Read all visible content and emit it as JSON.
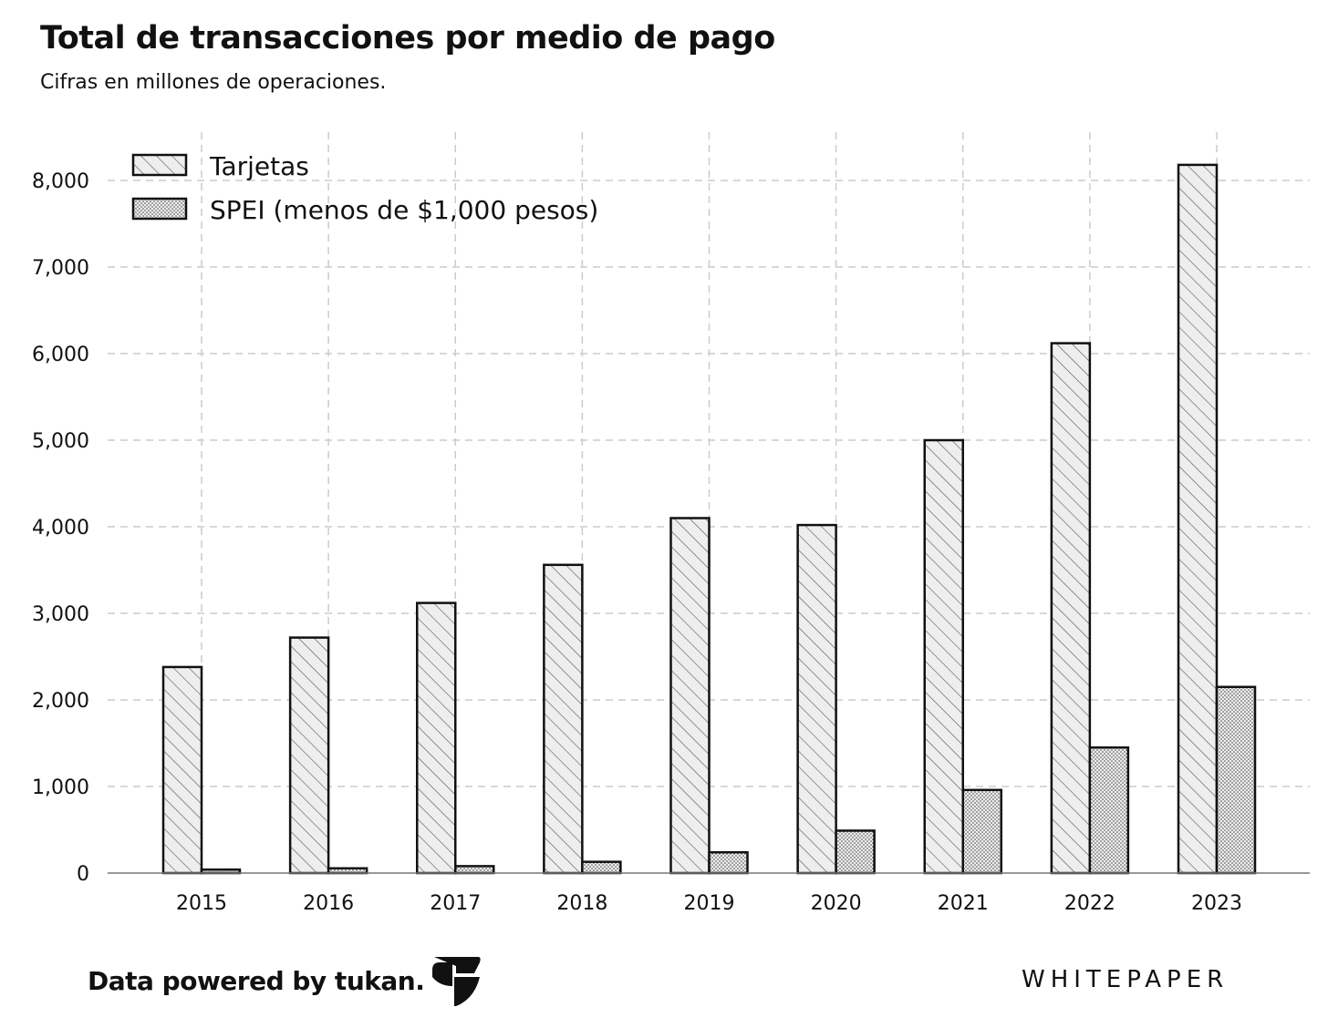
{
  "header": {
    "title": "Total de transacciones por medio de pago",
    "subtitle": "Cifras en millones de operaciones."
  },
  "footer": {
    "source": "Data powered by tukan.",
    "logo_icon": "tukan-logo-icon",
    "brand": "WHITEPAPER"
  },
  "chart_data": {
    "type": "bar",
    "categories": [
      "2015",
      "2016",
      "2017",
      "2018",
      "2019",
      "2020",
      "2021",
      "2022",
      "2023"
    ],
    "series": [
      {
        "name": "Tarjetas",
        "pattern": "hatch",
        "values": [
          2380,
          2720,
          3120,
          3560,
          4100,
          4020,
          5000,
          6120,
          8180
        ]
      },
      {
        "name": "SPEI (menos de $1,000 pesos)",
        "pattern": "dots",
        "values": [
          40,
          55,
          80,
          130,
          240,
          490,
          960,
          1450,
          2150
        ]
      }
    ],
    "ylim": [
      0,
      8000
    ],
    "yticks": [
      0,
      1000,
      2000,
      3000,
      4000,
      5000,
      6000,
      7000,
      8000
    ],
    "ytick_labels": [
      "0",
      "1,000",
      "2,000",
      "3,000",
      "4,000",
      "5,000",
      "6,000",
      "7,000",
      "8,000"
    ],
    "grid": true,
    "legend_position": "top-left",
    "colors": {
      "bar_fill": "#e6e6e6",
      "bar_stroke": "#111111",
      "grid": "#cccccc"
    }
  }
}
